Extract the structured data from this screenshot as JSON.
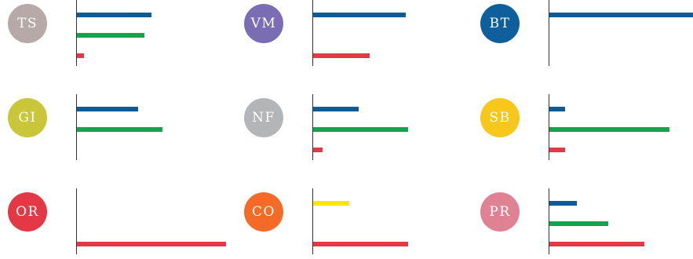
{
  "colors": {
    "series_a": "#0f5b94",
    "series_b": "#15a350",
    "series_c": "#df3a45",
    "series_d": "#fbe700"
  },
  "chart_data": [
    {
      "type": "bar",
      "label": "TS",
      "badge_color": "#b8a9a9",
      "bars": [
        {
          "color": "#0f5b94",
          "value": 0.33
        },
        {
          "color": "#15a350",
          "value": 0.3
        },
        {
          "color": "#df3a45",
          "value": 0.03
        }
      ]
    },
    {
      "type": "bar",
      "label": "VM",
      "badge_color": "#7b6db4",
      "bars": [
        {
          "color": "#0f5b94",
          "value": 0.41
        },
        {
          "color": "#df3a45",
          "value": 0.25
        }
      ]
    },
    {
      "type": "bar",
      "label": "BT",
      "badge_color": "#0e5f9b",
      "bars": [
        {
          "color": "#0f5b94",
          "value": 0.64
        }
      ]
    },
    {
      "type": "bar",
      "label": "GI",
      "badge_color": "#c9c63a",
      "bars": [
        {
          "color": "#0f5b94",
          "value": 0.27
        },
        {
          "color": "#15a350",
          "value": 0.38
        }
      ]
    },
    {
      "type": "bar",
      "label": "NF",
      "badge_color": "#b3b5b7",
      "bars": [
        {
          "color": "#0f5b94",
          "value": 0.2
        },
        {
          "color": "#15a350",
          "value": 0.42
        },
        {
          "color": "#df3a45",
          "value": 0.04
        }
      ]
    },
    {
      "type": "bar",
      "label": "SB",
      "badge_color": "#f7c71b",
      "bars": [
        {
          "color": "#0f5b94",
          "value": 0.07
        },
        {
          "color": "#15a350",
          "value": 0.53
        },
        {
          "color": "#df3a45",
          "value": 0.07
        }
      ]
    },
    {
      "type": "bar",
      "label": "OR",
      "badge_color": "#e33846",
      "bars": [
        {
          "color": "#df3a45",
          "value": 0.66
        }
      ]
    },
    {
      "type": "bar",
      "label": "CO",
      "badge_color": "#f46a27",
      "bars": [
        {
          "color": "#fbe700",
          "value": 0.16
        },
        {
          "color": "#df3a45",
          "value": 0.42
        }
      ]
    },
    {
      "type": "bar",
      "label": "PR",
      "badge_color": "#df8394",
      "bars": [
        {
          "color": "#0f5b94",
          "value": 0.12
        },
        {
          "color": "#15a350",
          "value": 0.26
        },
        {
          "color": "#df3a45",
          "value": 0.42
        }
      ]
    }
  ]
}
